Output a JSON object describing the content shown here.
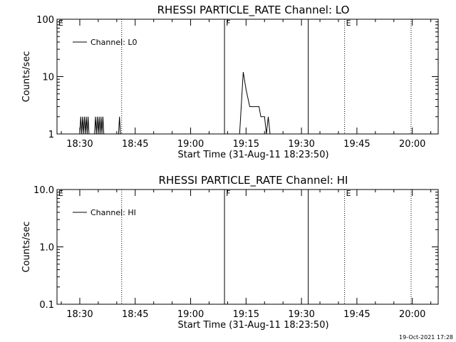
{
  "footer": {
    "timestamp": "19-Oct-2021 17:28"
  },
  "chart_data": [
    {
      "type": "line",
      "title": "RHESSI PARTICLE_RATE Channel: LO",
      "xlabel": "Start Time (31-Aug-11 18:23:50)",
      "ylabel": "Counts/sec",
      "y_scale": "log",
      "ylim": [
        1,
        100
      ],
      "y_ticks": [
        1,
        10,
        100
      ],
      "y_tick_labels": [
        "1",
        "10",
        "100"
      ],
      "xlim": [
        "18:23:50",
        "20:07:00"
      ],
      "x_ticks": [
        "18:30",
        "18:45",
        "19:00",
        "19:15",
        "19:30",
        "19:45",
        "20:00"
      ],
      "legend": {
        "label": "Channel: L0",
        "position": "top-left"
      },
      "markers": [
        {
          "time": "18:23:50",
          "label": "E",
          "style": "none"
        },
        {
          "time": "18:41:20",
          "label": "",
          "style": "dotted"
        },
        {
          "time": "19:09:10",
          "label": "F",
          "style": "solid"
        },
        {
          "time": "19:31:50",
          "label": "",
          "style": "solid"
        },
        {
          "time": "19:41:40",
          "label": "E",
          "style": "dotted"
        },
        {
          "time": "19:59:40",
          "label": "",
          "style": "dotted"
        }
      ],
      "series": [
        {
          "name": "Channel: L0",
          "x": [
            "18:30:00",
            "18:30:15",
            "18:30:30",
            "18:30:45",
            "18:31:00",
            "18:31:15",
            "18:31:30",
            "18:31:45",
            "18:32:00",
            "18:32:15",
            "18:32:30",
            "18:34:00",
            "18:34:15",
            "18:34:30",
            "18:34:45",
            "18:35:00",
            "18:35:15",
            "18:35:30",
            "18:35:45",
            "18:36:00",
            "18:36:15",
            "18:36:30",
            "18:40:30",
            "18:40:45",
            "18:41:00",
            "19:13:15",
            "19:14:15",
            "19:15:00",
            "19:16:00",
            "19:18:30",
            "19:19:00",
            "19:20:00",
            "19:20:30",
            "19:21:00",
            "19:21:30"
          ],
          "y": [
            1,
            2,
            1,
            2,
            1,
            2,
            1,
            2,
            1,
            2,
            1,
            1,
            2,
            1,
            2,
            1,
            2,
            1,
            2,
            1,
            2,
            1,
            1,
            2,
            1,
            1,
            12,
            6,
            3,
            3,
            2,
            2,
            1,
            2,
            1
          ]
        }
      ]
    },
    {
      "type": "line",
      "title": "RHESSI PARTICLE_RATE Channel: HI",
      "xlabel": "Start Time (31-Aug-11 18:23:50)",
      "ylabel": "Counts/sec",
      "y_scale": "log",
      "ylim": [
        0.1,
        10
      ],
      "y_ticks": [
        0.1,
        1,
        10
      ],
      "y_tick_labels": [
        "0.1",
        "1.0",
        "10.0"
      ],
      "xlim": [
        "18:23:50",
        "20:07:00"
      ],
      "x_ticks": [
        "18:30",
        "18:45",
        "19:00",
        "19:15",
        "19:30",
        "19:45",
        "20:00"
      ],
      "legend": {
        "label": "Channel: HI",
        "position": "top-left"
      },
      "markers": [
        {
          "time": "18:23:50",
          "label": "E",
          "style": "none"
        },
        {
          "time": "18:41:20",
          "label": "",
          "style": "dotted"
        },
        {
          "time": "19:09:10",
          "label": "F",
          "style": "solid"
        },
        {
          "time": "19:31:50",
          "label": "",
          "style": "solid"
        },
        {
          "time": "19:41:40",
          "label": "E",
          "style": "dotted"
        },
        {
          "time": "19:59:40",
          "label": "",
          "style": "dotted"
        }
      ],
      "series": [
        {
          "name": "Channel: HI",
          "x": [],
          "y": []
        }
      ]
    }
  ]
}
